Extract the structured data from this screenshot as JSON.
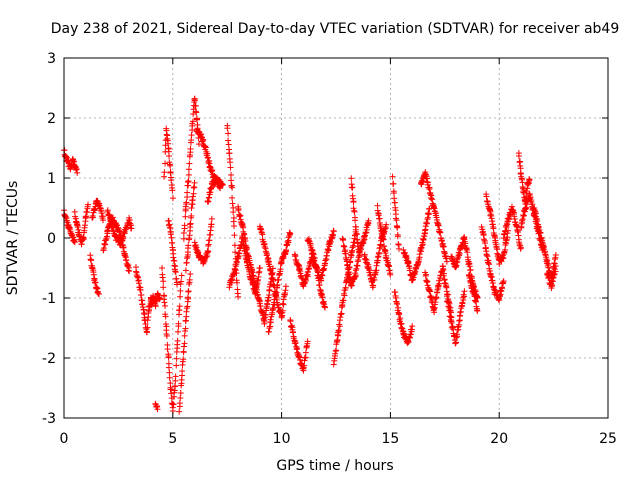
{
  "chart_data": {
    "type": "scatter",
    "title": "Day 238 of 2021, Sidereal Day-to-day VTEC variation (SDTVAR) for receiver ab49",
    "xlabel": "GPS time / hours",
    "ylabel": "SDTVAR / TECUs",
    "xlim": [
      0,
      25
    ],
    "ylim": [
      -3,
      3
    ],
    "xticks": [
      0,
      5,
      10,
      15,
      20,
      25
    ],
    "yticks": [
      -3,
      -2,
      -1,
      0,
      1,
      2,
      3
    ],
    "xtick_labels": [
      "0",
      "5",
      "10",
      "15",
      "20",
      "25"
    ],
    "ytick_labels": [
      "-3",
      "-2",
      "-1",
      "0",
      "1",
      "2",
      "3"
    ],
    "grid": true,
    "marker": "+",
    "color": "#ff0000",
    "series": [
      {
        "name": "SDTVAR",
        "segments": [
          {
            "x": [
              0.0,
              0.1,
              0.2,
              0.3,
              0.4,
              0.5,
              0.6
            ],
            "y": [
              1.45,
              1.35,
              1.25,
              1.15,
              1.3,
              1.2,
              1.1
            ]
          },
          {
            "x": [
              0.0,
              0.1,
              0.2,
              0.3,
              0.4,
              0.5
            ],
            "y": [
              0.45,
              0.3,
              0.2,
              0.1,
              0.0,
              -0.05
            ]
          },
          {
            "x": [
              0.5,
              0.6,
              0.7,
              0.8,
              0.9,
              1.0,
              1.1
            ],
            "y": [
              0.4,
              0.2,
              0.05,
              -0.1,
              0.0,
              0.35,
              0.55
            ]
          },
          {
            "x": [
              1.2,
              1.3,
              1.4,
              1.5,
              1.6
            ],
            "y": [
              -0.3,
              -0.5,
              -0.7,
              -0.85,
              -0.9
            ]
          },
          {
            "x": [
              1.3,
              1.4,
              1.5,
              1.6,
              1.7,
              1.8
            ],
            "y": [
              0.3,
              0.5,
              0.6,
              0.55,
              0.45,
              0.3
            ]
          },
          {
            "x": [
              1.8,
              2.0,
              2.2,
              2.4,
              2.6,
              2.8,
              3.0
            ],
            "y": [
              -0.2,
              0.1,
              0.35,
              0.2,
              0.05,
              -0.3,
              -0.55
            ]
          },
          {
            "x": [
              2.0,
              2.2,
              2.4,
              2.6,
              2.8,
              3.0,
              3.1
            ],
            "y": [
              0.45,
              0.2,
              0.0,
              -0.1,
              0.1,
              0.3,
              0.15
            ]
          },
          {
            "x": [
              3.3,
              3.5,
              3.7,
              3.8,
              3.9,
              4.0,
              4.1
            ],
            "y": [
              -0.5,
              -0.85,
              -1.3,
              -1.6,
              -1.2,
              -1.0,
              -1.05
            ]
          },
          {
            "x": [
              4.0,
              4.1,
              4.2,
              4.3,
              4.4
            ],
            "y": [
              -1.1,
              -1.0,
              -1.1,
              -0.95,
              -1.05
            ]
          },
          {
            "x": [
              4.2,
              4.3
            ],
            "y": [
              -2.75,
              -2.82
            ]
          },
          {
            "x": [
              4.5,
              4.6,
              4.7,
              4.8,
              4.9,
              5.0,
              5.1,
              5.2,
              5.3,
              5.4
            ],
            "y": [
              -0.5,
              -1.0,
              -1.5,
              -2.0,
              -2.5,
              -2.85,
              -2.5,
              -1.8,
              -1.2,
              -0.6
            ]
          },
          {
            "x": [
              4.6,
              4.7,
              4.8,
              4.9,
              5.0
            ],
            "y": [
              1.0,
              1.8,
              1.5,
              1.1,
              0.7
            ]
          },
          {
            "x": [
              4.8,
              4.9,
              5.0,
              5.1,
              5.2
            ],
            "y": [
              0.3,
              0.1,
              -0.2,
              -0.5,
              -0.8
            ]
          },
          {
            "x": [
              5.3,
              5.4,
              5.5,
              5.6,
              5.7,
              5.8
            ],
            "y": [
              -2.9,
              -2.4,
              -1.9,
              -1.4,
              -1.0,
              -0.6
            ]
          },
          {
            "x": [
              5.5,
              5.6,
              5.7,
              5.8,
              5.9,
              6.0,
              6.1,
              6.2
            ],
            "y": [
              0.0,
              0.5,
              0.9,
              1.4,
              1.9,
              2.35,
              2.0,
              1.6
            ]
          },
          {
            "x": [
              5.6,
              5.7,
              5.8,
              5.9,
              6.0
            ],
            "y": [
              -0.5,
              -0.2,
              0.2,
              0.6,
              0.9
            ]
          },
          {
            "x": [
              6.1,
              6.3,
              6.5,
              6.7,
              6.9,
              7.1,
              7.3
            ],
            "y": [
              1.8,
              1.7,
              1.5,
              1.2,
              1.0,
              0.95,
              0.9
            ]
          },
          {
            "x": [
              6.0,
              6.2,
              6.4,
              6.6,
              6.8
            ],
            "y": [
              -0.1,
              -0.3,
              -0.4,
              -0.25,
              0.3
            ]
          },
          {
            "x": [
              6.6,
              6.8,
              7.0,
              7.2
            ],
            "y": [
              0.6,
              0.9,
              0.95,
              0.85
            ]
          },
          {
            "x": [
              7.5,
              7.6,
              7.7,
              7.8,
              7.9,
              8.0
            ],
            "y": [
              1.9,
              1.4,
              0.9,
              0.3,
              -0.5,
              -1.0
            ]
          },
          {
            "x": [
              7.6,
              7.8,
              8.0,
              8.2,
              8.4,
              8.6,
              8.8,
              9.0
            ],
            "y": [
              -0.8,
              -0.6,
              -0.3,
              0.0,
              -0.4,
              -0.7,
              -0.9,
              -0.5
            ]
          },
          {
            "x": [
              8.0,
              8.2,
              8.4,
              8.6,
              8.8,
              9.0,
              9.2,
              9.4,
              9.6
            ],
            "y": [
              0.5,
              0.2,
              -0.2,
              -0.5,
              -0.8,
              -1.1,
              -1.4,
              -1.0,
              -0.5
            ]
          },
          {
            "x": [
              9.0,
              9.2,
              9.4,
              9.6,
              9.8,
              10.0,
              10.2
            ],
            "y": [
              0.2,
              -0.1,
              -0.4,
              -0.7,
              -1.1,
              -1.3,
              -0.8
            ]
          },
          {
            "x": [
              9.4,
              9.6,
              9.8,
              10.0,
              10.2,
              10.4
            ],
            "y": [
              -1.6,
              -1.2,
              -0.8,
              -0.4,
              -0.2,
              0.1
            ]
          },
          {
            "x": [
              10.4,
              10.6,
              10.8,
              11.0,
              11.2
            ],
            "y": [
              -1.4,
              -1.7,
              -2.0,
              -2.2,
              -1.7
            ]
          },
          {
            "x": [
              10.6,
              10.8,
              11.0,
              11.2,
              11.4,
              11.6,
              11.8,
              12.0
            ],
            "y": [
              -0.3,
              -0.5,
              -0.8,
              -0.6,
              -0.3,
              -0.5,
              -0.9,
              -1.2
            ]
          },
          {
            "x": [
              11.2,
              11.4,
              11.6,
              11.8,
              12.0,
              12.2,
              12.4
            ],
            "y": [
              0.0,
              -0.2,
              -0.5,
              -0.7,
              -0.4,
              -0.1,
              0.1
            ]
          },
          {
            "x": [
              12.4,
              12.6,
              12.8,
              13.0,
              13.2,
              13.4
            ],
            "y": [
              -2.1,
              -1.6,
              -1.1,
              -0.7,
              -0.3,
              0.1
            ]
          },
          {
            "x": [
              12.8,
              13.0,
              13.2,
              13.4,
              13.6,
              13.8,
              14.0
            ],
            "y": [
              0.0,
              -0.4,
              -0.8,
              -0.6,
              -0.2,
              0.0,
              0.3
            ]
          },
          {
            "x": [
              13.2,
              13.3,
              13.4,
              13.5,
              13.6
            ],
            "y": [
              1.0,
              0.6,
              0.2,
              -0.1,
              -0.3
            ]
          },
          {
            "x": [
              13.8,
              14.0,
              14.2,
              14.4,
              14.6,
              14.8
            ],
            "y": [
              -0.3,
              -0.5,
              -0.8,
              -0.4,
              0.0,
              0.2
            ]
          },
          {
            "x": [
              14.4,
              14.6,
              14.8,
              15.0
            ],
            "y": [
              0.5,
              0.1,
              -0.3,
              -0.6
            ]
          },
          {
            "x": [
              15.1,
              15.2,
              15.3,
              15.4
            ],
            "y": [
              1.0,
              0.6,
              0.2,
              -0.2
            ]
          },
          {
            "x": [
              15.2,
              15.4,
              15.6,
              15.8,
              16.0
            ],
            "y": [
              -0.9,
              -1.3,
              -1.6,
              -1.75,
              -1.5
            ]
          },
          {
            "x": [
              15.6,
              15.8,
              16.0,
              16.2,
              16.4,
              16.6,
              16.8
            ],
            "y": [
              -0.2,
              -0.4,
              -0.7,
              -0.5,
              -0.2,
              0.1,
              0.5
            ]
          },
          {
            "x": [
              16.4,
              16.6,
              16.8,
              17.0,
              17.2,
              17.4,
              17.6
            ],
            "y": [
              0.9,
              1.1,
              0.8,
              0.5,
              0.2,
              -0.1,
              -0.4
            ]
          },
          {
            "x": [
              16.6,
              16.8,
              17.0,
              17.2,
              17.4,
              17.6,
              17.8
            ],
            "y": [
              -0.6,
              -0.9,
              -1.2,
              -0.8,
              -0.5,
              -0.9,
              -1.3
            ]
          },
          {
            "x": [
              17.6,
              17.8,
              18.0,
              18.2,
              18.4
            ],
            "y": [
              -1.0,
              -1.4,
              -1.75,
              -1.3,
              -0.9
            ]
          },
          {
            "x": [
              17.8,
              18.0,
              18.2,
              18.4,
              18.6,
              18.8,
              19.0
            ],
            "y": [
              -0.3,
              -0.5,
              -0.2,
              0.0,
              -0.4,
              -0.8,
              -1.0
            ]
          },
          {
            "x": [
              18.6,
              18.8,
              19.0
            ],
            "y": [
              -0.6,
              -0.9,
              -1.2
            ]
          },
          {
            "x": [
              19.2,
              19.4,
              19.6,
              19.8,
              20.0,
              20.2
            ],
            "y": [
              0.2,
              -0.2,
              -0.6,
              -0.9,
              -1.0,
              -0.7
            ]
          },
          {
            "x": [
              19.4,
              19.6,
              19.8,
              20.0,
              20.2,
              20.4
            ],
            "y": [
              0.7,
              0.4,
              0.0,
              -0.4,
              -0.3,
              0.1
            ]
          },
          {
            "x": [
              20.2,
              20.4,
              20.6,
              20.8,
              21.0
            ],
            "y": [
              0.0,
              0.3,
              0.5,
              0.2,
              -0.2
            ]
          },
          {
            "x": [
              20.9,
              21.0,
              21.1,
              21.2,
              21.3,
              21.4
            ],
            "y": [
              1.4,
              1.1,
              0.8,
              0.6,
              0.9,
              0.95
            ]
          },
          {
            "x": [
              21.0,
              21.2,
              21.4,
              21.6,
              21.8,
              22.0
            ],
            "y": [
              0.2,
              0.5,
              0.7,
              0.4,
              0.1,
              -0.2
            ]
          },
          {
            "x": [
              21.6,
              21.8,
              22.0,
              22.2,
              22.4,
              22.6
            ],
            "y": [
              0.5,
              0.2,
              -0.1,
              -0.4,
              -0.7,
              -0.3
            ]
          },
          {
            "x": [
              22.2,
              22.4,
              22.6
            ],
            "y": [
              -0.6,
              -0.8,
              -0.5
            ]
          }
        ]
      }
    ]
  }
}
